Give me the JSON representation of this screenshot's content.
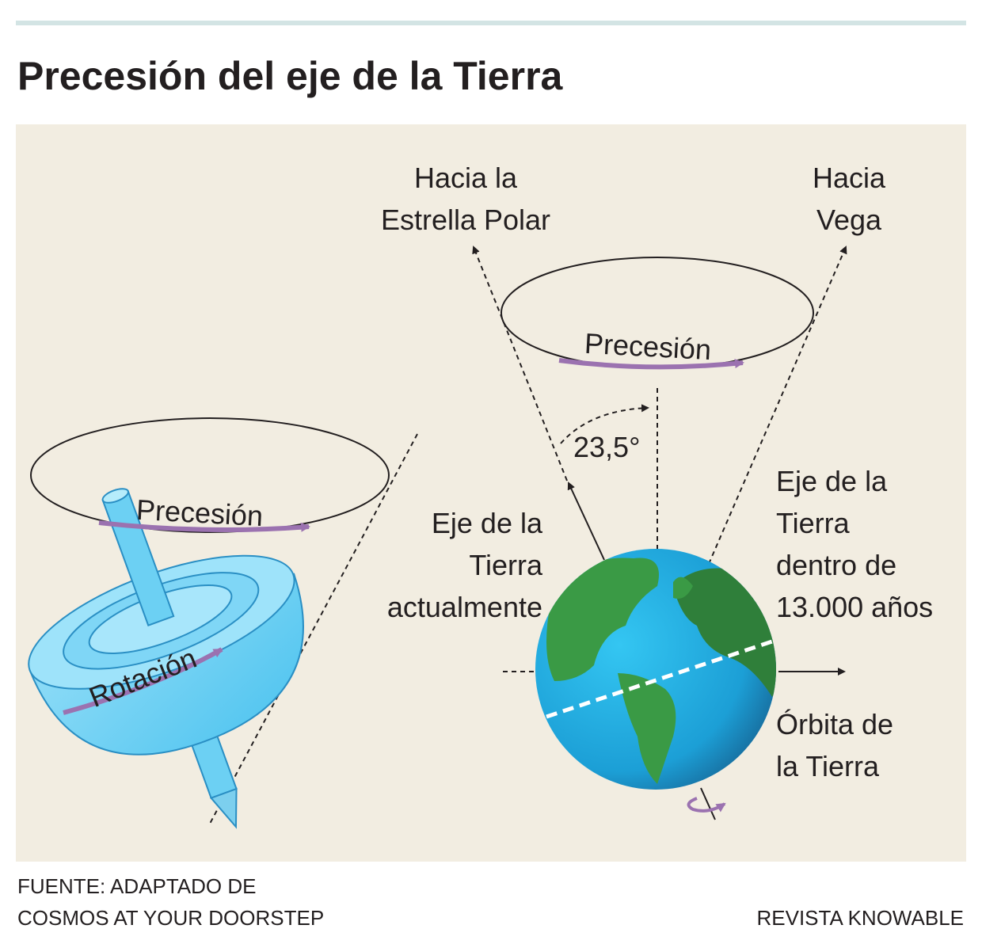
{
  "header": {
    "title": "Precesión del eje de la Tierra"
  },
  "diagram": {
    "spinning_top": {
      "precession_label": "Precesión",
      "rotation_label": "Rotación"
    },
    "earth": {
      "toward_polaris": [
        "Hacia la",
        "Estrella Polar"
      ],
      "toward_vega": [
        "Hacia",
        "Vega"
      ],
      "precession_label": "Precesión",
      "tilt_angle": "23,5°",
      "current_axis": [
        "Eje de la",
        "Tierra",
        "actualmente"
      ],
      "future_axis": [
        "Eje de la",
        "Tierra",
        "dentro de",
        "13.000 años"
      ],
      "orbit": [
        "Órbita de",
        "la Tierra"
      ]
    }
  },
  "footer": {
    "source": [
      "FUENTE: ADAPTADO DE",
      "COSMOS AT YOUR DOORSTEP"
    ],
    "credit": "REVISTA KNOWABLE"
  }
}
